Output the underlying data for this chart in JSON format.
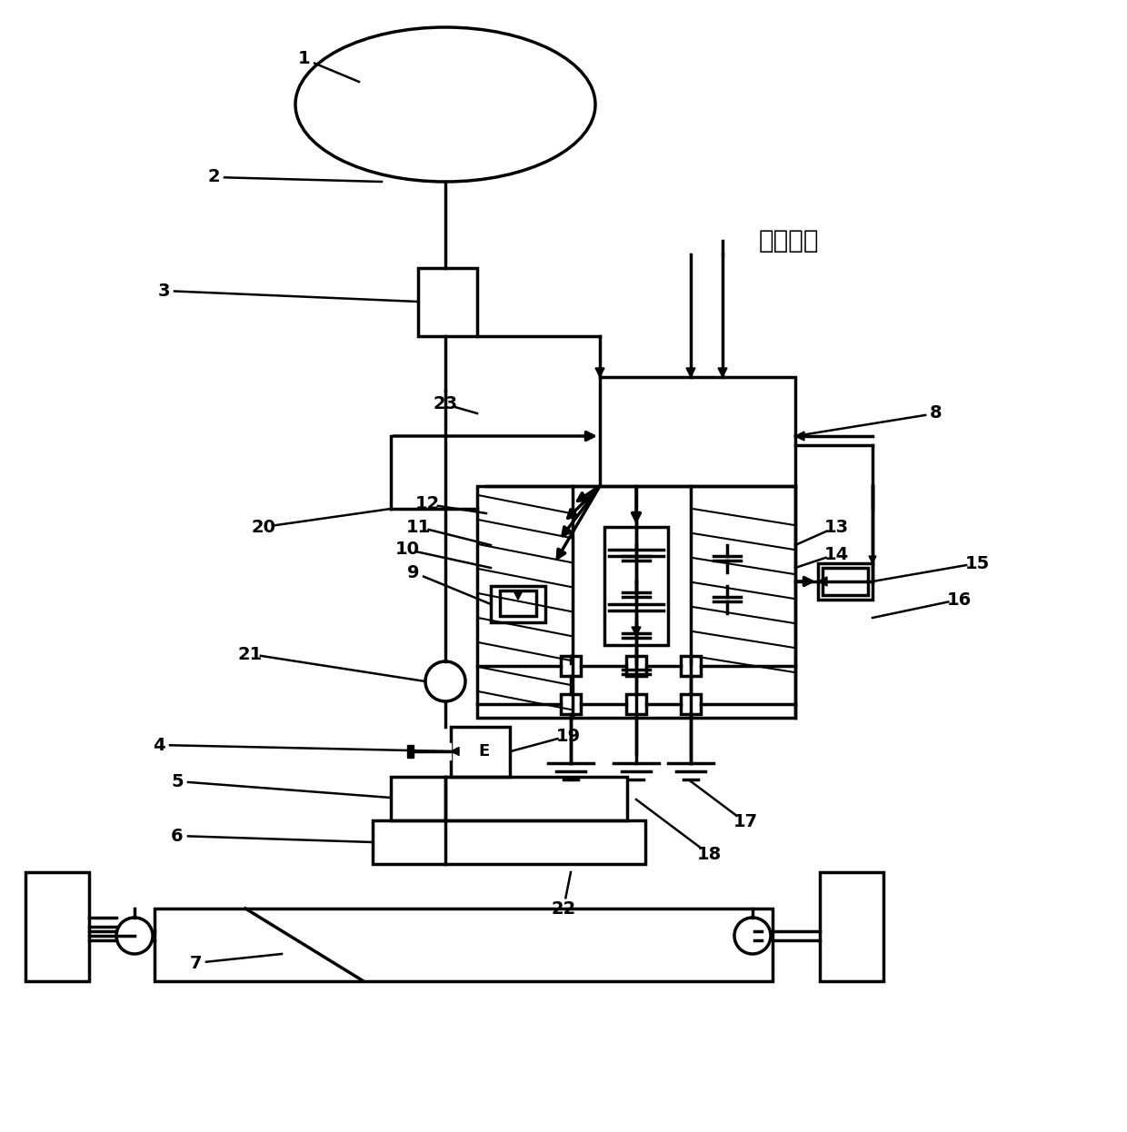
{
  "bg_color": "#ffffff",
  "lc": "#000000",
  "lw": 2.5,
  "chinese_text": "车速信号"
}
